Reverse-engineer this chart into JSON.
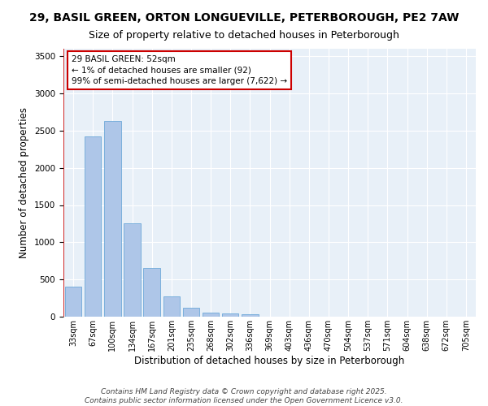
{
  "title_line1": "29, BASIL GREEN, ORTON LONGUEVILLE, PETERBOROUGH, PE2 7AW",
  "title_line2": "Size of property relative to detached houses in Peterborough",
  "xlabel": "Distribution of detached houses by size in Peterborough",
  "ylabel": "Number of detached properties",
  "categories": [
    "33sqm",
    "67sqm",
    "100sqm",
    "134sqm",
    "167sqm",
    "201sqm",
    "235sqm",
    "268sqm",
    "302sqm",
    "336sqm",
    "369sqm",
    "403sqm",
    "436sqm",
    "470sqm",
    "504sqm",
    "537sqm",
    "571sqm",
    "604sqm",
    "638sqm",
    "672sqm",
    "705sqm"
  ],
  "values": [
    400,
    2420,
    2630,
    1250,
    650,
    270,
    115,
    60,
    45,
    35,
    0,
    0,
    0,
    0,
    0,
    0,
    0,
    0,
    0,
    0,
    0
  ],
  "bar_color": "#aec6e8",
  "bar_edgecolor": "#5a9fd4",
  "marker_color": "#cc0000",
  "annotation_text": "29 BASIL GREEN: 52sqm\n← 1% of detached houses are smaller (92)\n99% of semi-detached houses are larger (7,622) →",
  "annotation_box_color": "#ffffff",
  "annotation_box_edgecolor": "#cc0000",
  "ylim": [
    0,
    3600
  ],
  "background_color": "#e8f0f8",
  "grid_color": "#ffffff",
  "footer_line1": "Contains HM Land Registry data © Crown copyright and database right 2025.",
  "footer_line2": "Contains public sector information licensed under the Open Government Licence v3.0.",
  "title_fontsize": 10,
  "subtitle_fontsize": 9,
  "axis_label_fontsize": 8.5,
  "tick_fontsize": 7,
  "footer_fontsize": 6.5,
  "annotation_fontsize": 7.5
}
